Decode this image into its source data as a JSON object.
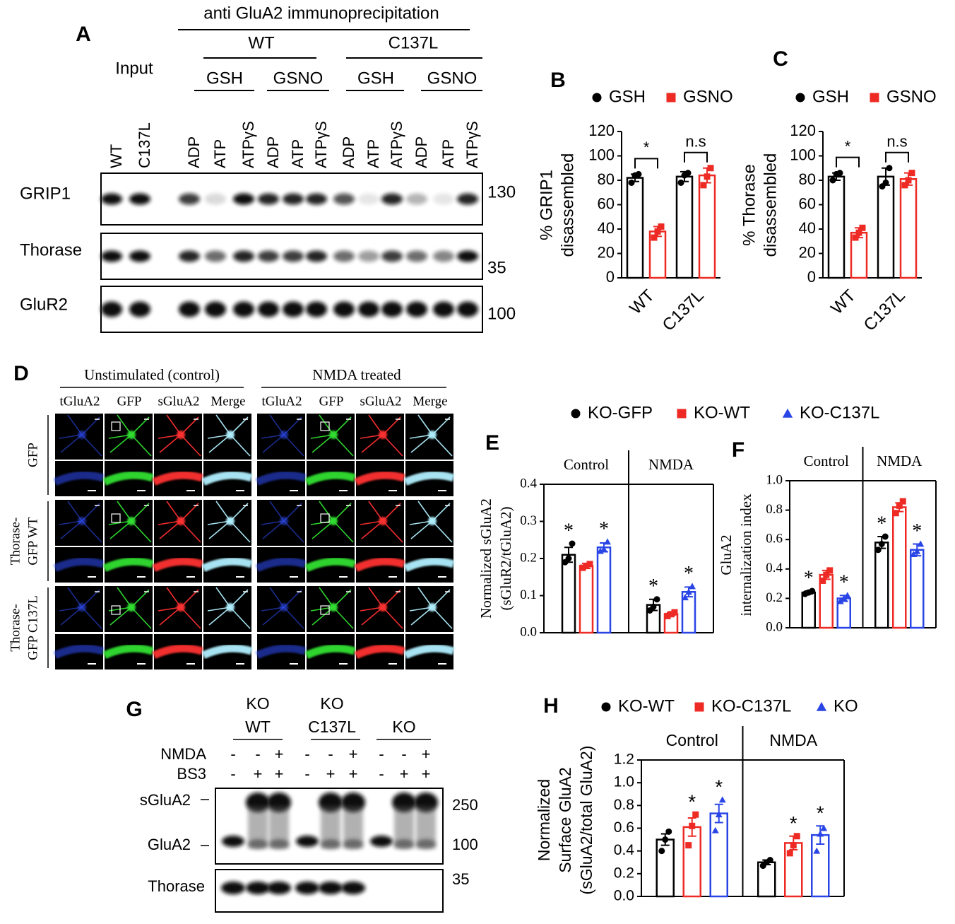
{
  "chart_data": [
    {
      "type": "bar",
      "panel": "B",
      "ylabel": [
        "% GRIP1",
        "disassembled"
      ],
      "categories": [
        "WT",
        "C137L"
      ],
      "series": [
        {
          "name": "GSH",
          "color": "#000000",
          "marker": "circle",
          "values": [
            82,
            83
          ],
          "errors": [
            3,
            4
          ],
          "points": [
            [
              78,
              84,
              85
            ],
            [
              78,
              84,
              86
            ]
          ]
        },
        {
          "name": "GSNO",
          "color": "#ee2a24",
          "marker": "square",
          "values": [
            38,
            84
          ],
          "errors": [
            4,
            6
          ],
          "points": [
            [
              33,
              38,
              42
            ],
            [
              76,
              83,
              90
            ]
          ]
        }
      ],
      "brackets": [
        "*",
        "n.s"
      ],
      "ylim": [
        0,
        120
      ],
      "yticks": [
        0,
        20,
        40,
        60,
        80,
        100,
        120
      ],
      "legend": "top"
    },
    {
      "type": "bar",
      "panel": "C",
      "ylabel": [
        "% Thorase",
        "disassembled"
      ],
      "categories": [
        "WT",
        "C137L"
      ],
      "series": [
        {
          "name": "GSH",
          "color": "#000000",
          "marker": "circle",
          "values": [
            83,
            83
          ],
          "errors": [
            3,
            7
          ],
          "points": [
            [
              80,
              85,
              86
            ],
            [
              75,
              78,
              90
            ]
          ]
        },
        {
          "name": "GSNO",
          "color": "#ee2a24",
          "marker": "square",
          "values": [
            37,
            81
          ],
          "errors": [
            4,
            5
          ],
          "points": [
            [
              33,
              37,
              41
            ],
            [
              76,
              80,
              86
            ]
          ]
        }
      ],
      "brackets": [
        "*",
        "n.s"
      ],
      "ylim": [
        0,
        120
      ],
      "yticks": [
        0,
        20,
        40,
        60,
        80,
        100,
        120
      ],
      "legend": "top"
    },
    {
      "type": "bar",
      "panel": "E",
      "ylabel": [
        "Normalized sGluA2",
        "(sGluR2/tGluA2)"
      ],
      "categories": [
        "Control",
        "NMDA"
      ],
      "series": [
        {
          "name": "KO-GFP",
          "color": "#000000",
          "marker": "circle",
          "values": [
            0.21,
            0.075
          ],
          "errors": [
            0.02,
            0.015
          ],
          "points": [
            [
              0.19,
              0.2,
              0.24
            ],
            [
              0.06,
              0.07,
              0.09
            ]
          ],
          "stars": [
            "*",
            "*"
          ]
        },
        {
          "name": "KO-WT",
          "color": "#ee2a24",
          "marker": "square",
          "values": [
            0.18,
            0.05
          ],
          "errors": [
            0.007,
            0.004
          ],
          "points": [
            [
              0.175,
              0.18,
              0.185
            ],
            [
              0.045,
              0.05,
              0.055
            ]
          ],
          "stars": [
            null,
            null
          ]
        },
        {
          "name": "KO-C137L",
          "color": "#2a45e6",
          "marker": "triangle",
          "values": [
            0.23,
            0.11
          ],
          "errors": [
            0.012,
            0.013
          ],
          "points": [
            [
              0.22,
              0.225,
              0.245
            ],
            [
              0.095,
              0.11,
              0.125
            ]
          ],
          "stars": [
            "*",
            "*"
          ]
        }
      ],
      "ylim": [
        0,
        0.4
      ],
      "yticks": [
        {
          "value": 0,
          "label": "0.0"
        },
        0.1,
        0.2,
        0.3,
        0.4
      ],
      "legend": "top"
    },
    {
      "type": "bar",
      "panel": "F",
      "ylabel": [
        "GluA2",
        "internalization index"
      ],
      "categories": [
        "Control",
        "NMDA"
      ],
      "series": [
        {
          "color": "#000000",
          "marker": "circle",
          "values": [
            0.24,
            0.58
          ],
          "errors": [
            0.01,
            0.04
          ],
          "points": [
            [
              0.23,
              0.24,
              0.25
            ],
            [
              0.53,
              0.57,
              0.62
            ]
          ],
          "stars": [
            "*",
            "*"
          ]
        },
        {
          "color": "#ee2a24",
          "marker": "square",
          "values": [
            0.36,
            0.82
          ],
          "errors": [
            0.03,
            0.03
          ],
          "points": [
            [
              0.32,
              0.36,
              0.39
            ],
            [
              0.78,
              0.83,
              0.86
            ]
          ],
          "stars": [
            null,
            null
          ]
        },
        {
          "color": "#2a45e6",
          "marker": "triangle",
          "values": [
            0.2,
            0.53
          ],
          "errors": [
            0.02,
            0.04
          ],
          "points": [
            [
              0.18,
              0.2,
              0.22
            ],
            [
              0.5,
              0.52,
              0.57
            ]
          ],
          "stars": [
            "*",
            "*"
          ]
        }
      ],
      "ylim": [
        0,
        1
      ],
      "yticks": [
        {
          "value": 0,
          "label": "0.0"
        },
        0.2,
        0.4,
        0.6,
        0.8,
        {
          "value": 1,
          "label": "1.0"
        }
      ]
    },
    {
      "type": "bar",
      "panel": "H",
      "ylabel": [
        "Normalized",
        "Surface GluA2",
        "(sGluA2/total GluA2)"
      ],
      "categories": [
        "Control",
        "NMDA"
      ],
      "series": [
        {
          "name": "KO-WT",
          "color": "#000000",
          "marker": "circle",
          "values": [
            0.5,
            0.3
          ],
          "errors": [
            0.05,
            0.02
          ],
          "points": [
            [
              0.4,
              0.5,
              0.57
            ],
            [
              0.27,
              0.3,
              0.32
            ]
          ],
          "stars": [
            null,
            null
          ]
        },
        {
          "name": "KO-C137L",
          "color": "#ee2a24",
          "marker": "square",
          "values": [
            0.61,
            0.47
          ],
          "errors": [
            0.08,
            0.06
          ],
          "points": [
            [
              0.45,
              0.62,
              0.72
            ],
            [
              0.38,
              0.45,
              0.53
            ]
          ],
          "stars": [
            "*",
            "*"
          ]
        },
        {
          "name": "KO",
          "color": "#2a45e6",
          "marker": "triangle",
          "values": [
            0.73,
            0.54
          ],
          "errors": [
            0.08,
            0.08
          ],
          "points": [
            [
              0.58,
              0.72,
              0.85
            ],
            [
              0.4,
              0.55,
              0.6
            ]
          ],
          "stars": [
            "*",
            "*"
          ]
        }
      ],
      "ylim": [
        0,
        1.2
      ],
      "yticks": [
        {
          "value": 0,
          "label": "0.0"
        },
        0.2,
        0.4,
        0.6,
        0.8,
        {
          "value": 1,
          "label": "1.0"
        },
        1.2
      ],
      "legend": "top"
    }
  ],
  "panel_a": {
    "label": "A",
    "title": "anti GluA2 immunoprecipitation",
    "input": "Input",
    "genotypes": [
      "WT",
      "C137L"
    ],
    "treatments": [
      "GSH",
      "GSNO",
      "GSH",
      "GSNO"
    ],
    "lanes": [
      "WT",
      "C137L",
      "ADP",
      "ATP",
      "ATPγS",
      "ADP",
      "ATP",
      "ATPγS",
      "ADP",
      "ATP",
      "ATPγS",
      "ADP",
      "ATP",
      "ATPγS"
    ],
    "rows": [
      "GRIP1",
      "Thorase",
      "GluR2"
    ],
    "mw": [
      "130",
      "35",
      "100"
    ]
  },
  "panel_d": {
    "label": "D",
    "conditions": [
      "Unstimulated (control)",
      "NMDA treated"
    ],
    "channels": [
      "tGluA2",
      "GFP",
      "sGluA2",
      "Merge"
    ],
    "rows": [
      [
        "GFP"
      ],
      [
        "Thorase-",
        "GFP WT"
      ],
      [
        "Thorase-",
        "GFP C137L"
      ]
    ]
  },
  "panel_g": {
    "label": "G",
    "groups": [
      [
        "KO",
        "WT"
      ],
      [
        "KO",
        "C137L"
      ],
      [
        "KO"
      ]
    ],
    "conditions": [
      "NMDA",
      "BS3"
    ],
    "nmda": [
      "-",
      "-",
      "+",
      "-",
      "-",
      "+",
      "-",
      "-",
      "+"
    ],
    "bs3": [
      "-",
      "+",
      "+",
      "-",
      "+",
      "+",
      "-",
      "+",
      "+"
    ],
    "bands": [
      "sGluA2",
      "GluA2"
    ],
    "loading": "Thorase",
    "mw": [
      "250",
      "100",
      "35"
    ]
  }
}
